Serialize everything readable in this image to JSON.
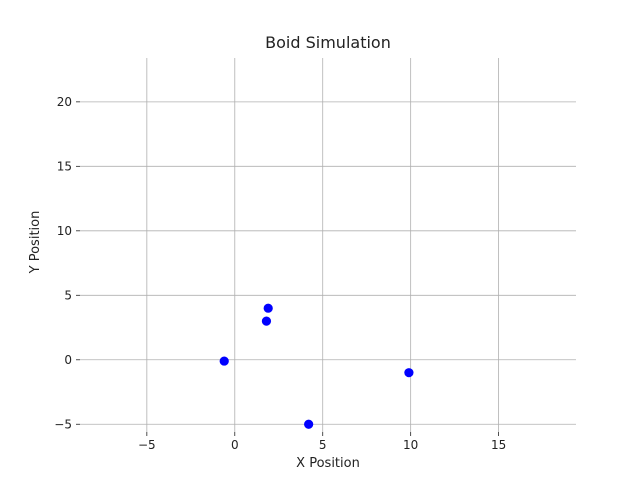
{
  "chart_data": {
    "type": "scatter",
    "title": "Boid Simulation",
    "xlabel": "X Position",
    "ylabel": "Y Position",
    "xlim": [
      -8.8,
      19.4
    ],
    "ylim": [
      -5.6,
      23.4
    ],
    "xticks": [
      -5,
      0,
      5,
      10,
      15
    ],
    "yticks": [
      -5,
      0,
      5,
      10,
      15,
      20
    ],
    "xtick_labels": [
      "−5",
      "0",
      "5",
      "10",
      "15"
    ],
    "ytick_labels": [
      "−5",
      "0",
      "5",
      "10",
      "15",
      "20"
    ],
    "grid": true,
    "series": [
      {
        "color": "#0000ff",
        "points": [
          {
            "x": 1.9,
            "y": 4.0
          },
          {
            "x": 1.8,
            "y": 3.0
          },
          {
            "x": -0.6,
            "y": -0.1
          },
          {
            "x": 9.9,
            "y": -1.0
          },
          {
            "x": 4.2,
            "y": -5.0
          }
        ]
      }
    ]
  }
}
